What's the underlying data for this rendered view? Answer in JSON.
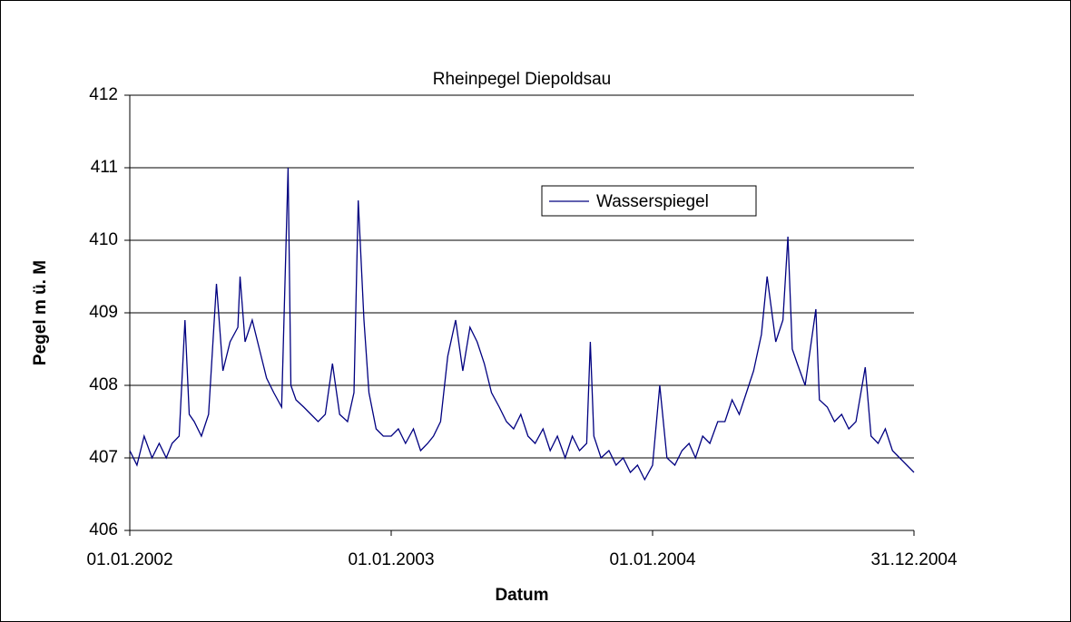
{
  "chart_data": {
    "type": "line",
    "title": "Rheinpegel Diepoldsau",
    "x_label": "Datum",
    "y_label": "Pegel m ü. M",
    "xlim": [
      "2002-01-01",
      "2004-12-31"
    ],
    "xticks": [
      {
        "value": "2002-01-01",
        "label": "01.01.2002"
      },
      {
        "value": "2003-01-01",
        "label": "01.01.2003"
      },
      {
        "value": "2004-01-01",
        "label": "01.01.2004"
      },
      {
        "value": "2004-12-31",
        "label": "31.12.2004"
      }
    ],
    "ylim": [
      406,
      412
    ],
    "yticks": [
      406,
      407,
      408,
      409,
      410,
      411,
      412
    ],
    "grid": true,
    "legend": "upper right",
    "x": [
      "2002-01-01",
      "2002-01-11",
      "2002-01-21",
      "2002-02-01",
      "2002-02-11",
      "2002-02-21",
      "2002-03-01",
      "2002-03-11",
      "2002-03-19",
      "2002-03-25",
      "2002-04-01",
      "2002-04-11",
      "2002-04-21",
      "2002-05-02",
      "2002-05-11",
      "2002-05-21",
      "2002-06-01",
      "2002-06-04",
      "2002-06-11",
      "2002-06-21",
      "2002-07-01",
      "2002-07-11",
      "2002-07-21",
      "2002-08-01",
      "2002-08-10",
      "2002-08-14",
      "2002-08-21",
      "2002-09-01",
      "2002-09-11",
      "2002-09-21",
      "2002-10-01",
      "2002-10-11",
      "2002-10-21",
      "2002-11-01",
      "2002-11-10",
      "2002-11-16",
      "2002-11-24",
      "2002-12-01",
      "2002-12-11",
      "2002-12-21",
      "2003-01-01",
      "2003-01-11",
      "2003-01-21",
      "2003-02-01",
      "2003-02-11",
      "2003-02-21",
      "2003-03-01",
      "2003-03-11",
      "2003-03-21",
      "2003-04-01",
      "2003-04-11",
      "2003-04-21",
      "2003-05-01",
      "2003-05-11",
      "2003-05-21",
      "2003-06-01",
      "2003-06-11",
      "2003-06-21",
      "2003-07-01",
      "2003-07-11",
      "2003-07-21",
      "2003-08-01",
      "2003-08-11",
      "2003-08-21",
      "2003-09-01",
      "2003-09-11",
      "2003-09-21",
      "2003-10-01",
      "2003-10-06",
      "2003-10-11",
      "2003-10-21",
      "2003-11-01",
      "2003-11-11",
      "2003-11-21",
      "2003-12-01",
      "2003-12-11",
      "2003-12-21",
      "2004-01-01",
      "2004-01-11",
      "2004-01-21",
      "2004-02-01",
      "2004-02-11",
      "2004-02-21",
      "2004-03-01",
      "2004-03-11",
      "2004-03-21",
      "2004-04-01",
      "2004-04-11",
      "2004-04-21",
      "2004-05-01",
      "2004-05-11",
      "2004-05-21",
      "2004-06-01",
      "2004-06-09",
      "2004-06-21",
      "2004-07-01",
      "2004-07-08",
      "2004-07-14",
      "2004-07-21",
      "2004-08-01",
      "2004-08-16",
      "2004-08-21",
      "2004-09-01",
      "2004-09-11",
      "2004-09-21",
      "2004-10-01",
      "2004-10-11",
      "2004-10-24",
      "2004-11-01",
      "2004-11-11",
      "2004-11-21",
      "2004-12-01",
      "2004-12-11",
      "2004-12-21",
      "2004-12-31"
    ],
    "series": [
      {
        "name": "Wasserspiegel",
        "color": "#000080",
        "values": [
          407.1,
          406.9,
          407.3,
          407.0,
          407.2,
          407.0,
          407.2,
          407.3,
          408.9,
          407.6,
          407.5,
          407.3,
          407.6,
          409.4,
          408.2,
          408.6,
          408.8,
          409.5,
          408.6,
          408.9,
          408.5,
          408.1,
          407.9,
          407.7,
          411.0,
          408.0,
          407.8,
          407.7,
          407.6,
          407.5,
          407.6,
          408.3,
          407.6,
          407.5,
          407.9,
          410.55,
          408.9,
          407.9,
          407.4,
          407.3,
          407.3,
          407.4,
          407.2,
          407.4,
          407.1,
          407.2,
          407.3,
          407.5,
          408.4,
          408.9,
          408.2,
          408.8,
          408.6,
          408.3,
          407.9,
          407.7,
          407.5,
          407.4,
          407.6,
          407.3,
          407.2,
          407.4,
          407.1,
          407.3,
          407.0,
          407.3,
          407.1,
          407.2,
          408.6,
          407.3,
          407.0,
          407.1,
          406.9,
          407.0,
          406.8,
          406.9,
          406.7,
          406.9,
          408.0,
          407.0,
          406.9,
          407.1,
          407.2,
          407.0,
          407.3,
          407.2,
          407.5,
          407.5,
          407.8,
          407.6,
          407.9,
          408.2,
          408.7,
          409.5,
          408.6,
          408.9,
          410.05,
          408.5,
          408.3,
          408.0,
          409.05,
          407.8,
          407.7,
          407.5,
          407.6,
          407.4,
          407.5,
          408.25,
          407.3,
          407.2,
          407.4,
          407.1,
          407.0,
          406.9,
          406.8
        ]
      }
    ]
  }
}
